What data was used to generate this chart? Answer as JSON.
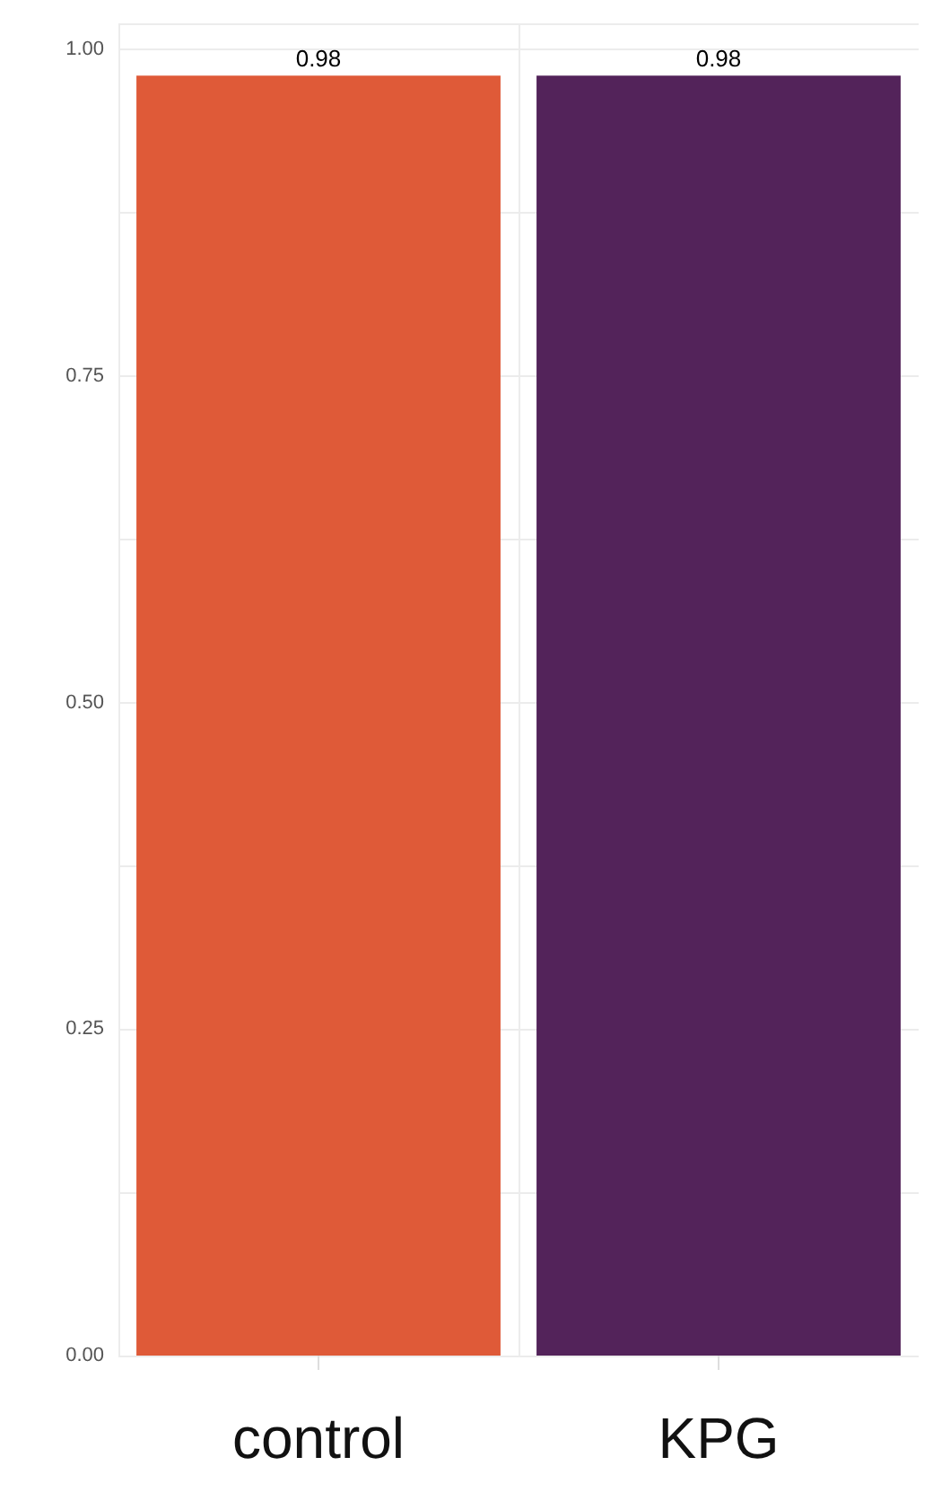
{
  "chart_data": {
    "type": "bar",
    "categories": [
      "control",
      "KPG"
    ],
    "values": [
      0.98,
      0.98
    ],
    "colors": [
      "#df5a38",
      "#53235a"
    ],
    "ylim": [
      0,
      1.02
    ],
    "yticks": [
      {
        "value": 0,
        "label": "0.00"
      },
      {
        "value": 0.125,
        "label": null
      },
      {
        "value": 0.25,
        "label": "0.25"
      },
      {
        "value": 0.375,
        "label": null
      },
      {
        "value": 0.5,
        "label": "0.50"
      },
      {
        "value": 0.625,
        "label": null
      },
      {
        "value": 0.75,
        "label": "0.75"
      },
      {
        "value": 0.875,
        "label": null
      },
      {
        "value": 1,
        "label": "1.00"
      }
    ],
    "grid": true,
    "data_labels": true
  }
}
